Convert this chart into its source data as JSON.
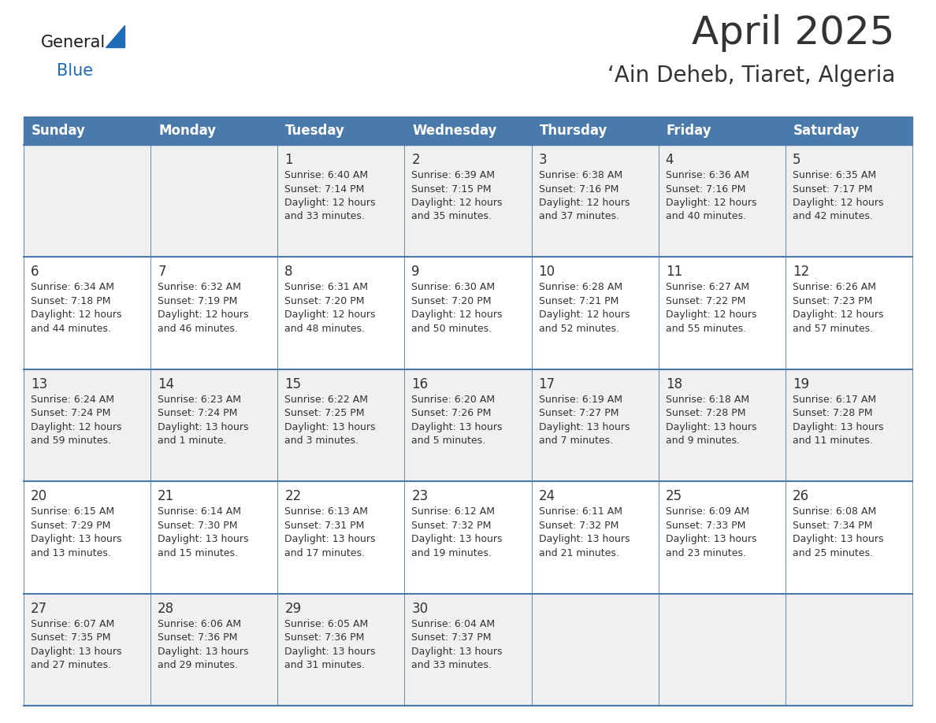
{
  "title": "April 2025",
  "subtitle": "‘Ain Deheb, Tiaret, Algeria",
  "header_bg": "#4a7aac",
  "header_text_color": "#ffffff",
  "cell_bg_odd": "#f0f0f0",
  "cell_bg_even": "#ffffff",
  "day_names": [
    "Sunday",
    "Monday",
    "Tuesday",
    "Wednesday",
    "Thursday",
    "Friday",
    "Saturday"
  ],
  "text_color": "#333333",
  "line_color": "#4a7aac",
  "title_fontsize": 36,
  "subtitle_fontsize": 20,
  "day_name_fontsize": 12,
  "day_num_fontsize": 12,
  "info_fontsize": 9,
  "calendar": [
    [
      {
        "day": "",
        "info": ""
      },
      {
        "day": "",
        "info": ""
      },
      {
        "day": "1",
        "info": "Sunrise: 6:40 AM\nSunset: 7:14 PM\nDaylight: 12 hours\nand 33 minutes."
      },
      {
        "day": "2",
        "info": "Sunrise: 6:39 AM\nSunset: 7:15 PM\nDaylight: 12 hours\nand 35 minutes."
      },
      {
        "day": "3",
        "info": "Sunrise: 6:38 AM\nSunset: 7:16 PM\nDaylight: 12 hours\nand 37 minutes."
      },
      {
        "day": "4",
        "info": "Sunrise: 6:36 AM\nSunset: 7:16 PM\nDaylight: 12 hours\nand 40 minutes."
      },
      {
        "day": "5",
        "info": "Sunrise: 6:35 AM\nSunset: 7:17 PM\nDaylight: 12 hours\nand 42 minutes."
      }
    ],
    [
      {
        "day": "6",
        "info": "Sunrise: 6:34 AM\nSunset: 7:18 PM\nDaylight: 12 hours\nand 44 minutes."
      },
      {
        "day": "7",
        "info": "Sunrise: 6:32 AM\nSunset: 7:19 PM\nDaylight: 12 hours\nand 46 minutes."
      },
      {
        "day": "8",
        "info": "Sunrise: 6:31 AM\nSunset: 7:20 PM\nDaylight: 12 hours\nand 48 minutes."
      },
      {
        "day": "9",
        "info": "Sunrise: 6:30 AM\nSunset: 7:20 PM\nDaylight: 12 hours\nand 50 minutes."
      },
      {
        "day": "10",
        "info": "Sunrise: 6:28 AM\nSunset: 7:21 PM\nDaylight: 12 hours\nand 52 minutes."
      },
      {
        "day": "11",
        "info": "Sunrise: 6:27 AM\nSunset: 7:22 PM\nDaylight: 12 hours\nand 55 minutes."
      },
      {
        "day": "12",
        "info": "Sunrise: 6:26 AM\nSunset: 7:23 PM\nDaylight: 12 hours\nand 57 minutes."
      }
    ],
    [
      {
        "day": "13",
        "info": "Sunrise: 6:24 AM\nSunset: 7:24 PM\nDaylight: 12 hours\nand 59 minutes."
      },
      {
        "day": "14",
        "info": "Sunrise: 6:23 AM\nSunset: 7:24 PM\nDaylight: 13 hours\nand 1 minute."
      },
      {
        "day": "15",
        "info": "Sunrise: 6:22 AM\nSunset: 7:25 PM\nDaylight: 13 hours\nand 3 minutes."
      },
      {
        "day": "16",
        "info": "Sunrise: 6:20 AM\nSunset: 7:26 PM\nDaylight: 13 hours\nand 5 minutes."
      },
      {
        "day": "17",
        "info": "Sunrise: 6:19 AM\nSunset: 7:27 PM\nDaylight: 13 hours\nand 7 minutes."
      },
      {
        "day": "18",
        "info": "Sunrise: 6:18 AM\nSunset: 7:28 PM\nDaylight: 13 hours\nand 9 minutes."
      },
      {
        "day": "19",
        "info": "Sunrise: 6:17 AM\nSunset: 7:28 PM\nDaylight: 13 hours\nand 11 minutes."
      }
    ],
    [
      {
        "day": "20",
        "info": "Sunrise: 6:15 AM\nSunset: 7:29 PM\nDaylight: 13 hours\nand 13 minutes."
      },
      {
        "day": "21",
        "info": "Sunrise: 6:14 AM\nSunset: 7:30 PM\nDaylight: 13 hours\nand 15 minutes."
      },
      {
        "day": "22",
        "info": "Sunrise: 6:13 AM\nSunset: 7:31 PM\nDaylight: 13 hours\nand 17 minutes."
      },
      {
        "day": "23",
        "info": "Sunrise: 6:12 AM\nSunset: 7:32 PM\nDaylight: 13 hours\nand 19 minutes."
      },
      {
        "day": "24",
        "info": "Sunrise: 6:11 AM\nSunset: 7:32 PM\nDaylight: 13 hours\nand 21 minutes."
      },
      {
        "day": "25",
        "info": "Sunrise: 6:09 AM\nSunset: 7:33 PM\nDaylight: 13 hours\nand 23 minutes."
      },
      {
        "day": "26",
        "info": "Sunrise: 6:08 AM\nSunset: 7:34 PM\nDaylight: 13 hours\nand 25 minutes."
      }
    ],
    [
      {
        "day": "27",
        "info": "Sunrise: 6:07 AM\nSunset: 7:35 PM\nDaylight: 13 hours\nand 27 minutes."
      },
      {
        "day": "28",
        "info": "Sunrise: 6:06 AM\nSunset: 7:36 PM\nDaylight: 13 hours\nand 29 minutes."
      },
      {
        "day": "29",
        "info": "Sunrise: 6:05 AM\nSunset: 7:36 PM\nDaylight: 13 hours\nand 31 minutes."
      },
      {
        "day": "30",
        "info": "Sunrise: 6:04 AM\nSunset: 7:37 PM\nDaylight: 13 hours\nand 33 minutes."
      },
      {
        "day": "",
        "info": ""
      },
      {
        "day": "",
        "info": ""
      },
      {
        "day": "",
        "info": ""
      }
    ]
  ],
  "logo_text1": "General",
  "logo_text2": "Blue",
  "logo_color1": "#1a1a1a",
  "logo_color2": "#1e6bb8",
  "logo_triangle_color": "#1e6bb8"
}
